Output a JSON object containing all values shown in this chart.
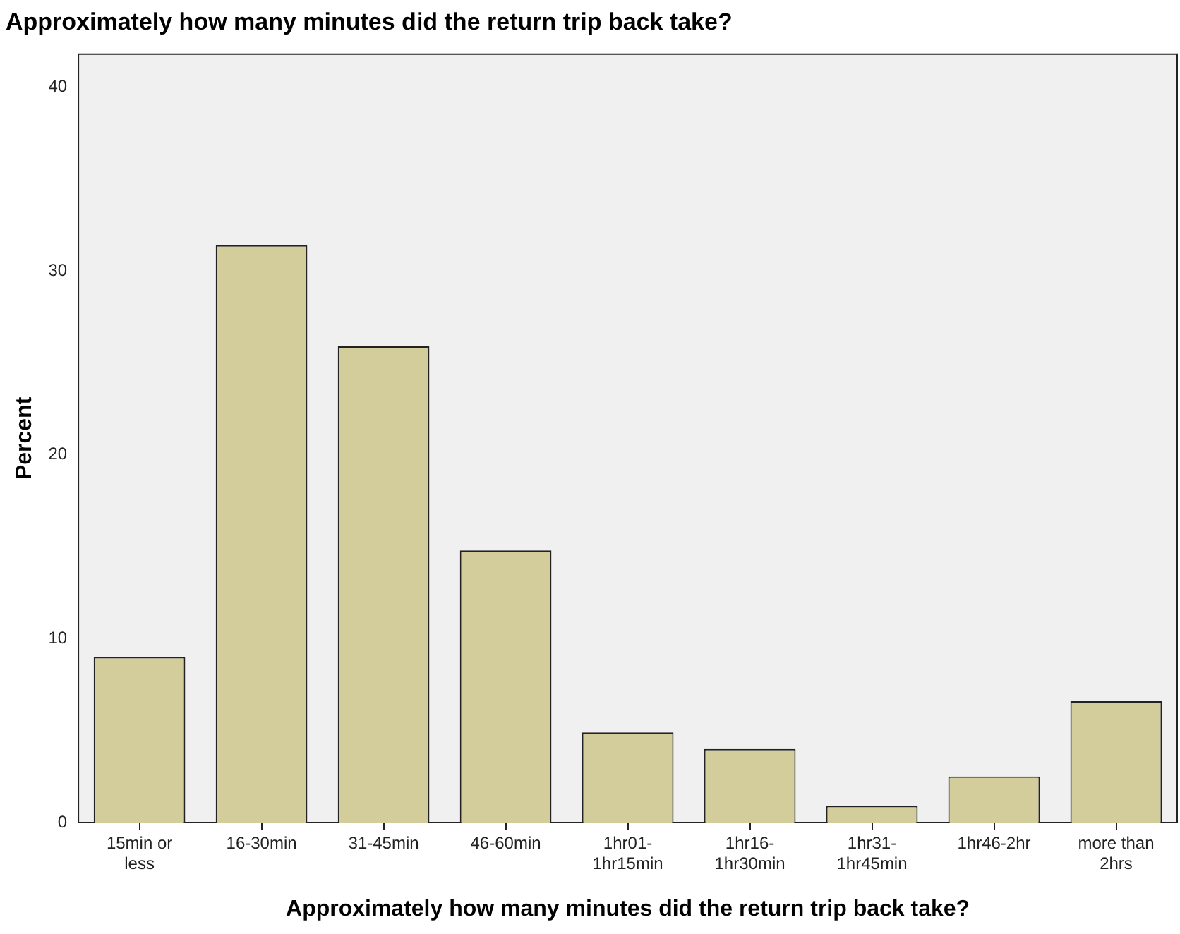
{
  "chart_data": {
    "type": "bar",
    "title": "Approximately how many minutes did the return trip back take?",
    "xlabel": "Approximately how many minutes did the return trip back take?",
    "ylabel": "Percent",
    "categories": [
      "15min or less",
      "16-30min",
      "31-45min",
      "46-60min",
      "1hr01-1hr15min",
      "1hr16-1hr30min",
      "1hr31-1hr45min",
      "1hr46-2hr",
      "more than 2hrs"
    ],
    "values": [
      9.0,
      31.4,
      25.9,
      14.8,
      4.9,
      4.0,
      0.9,
      2.5,
      6.6
    ],
    "color": "#d3cd9b",
    "ylim": [
      0,
      41.8
    ],
    "yticks": [
      0,
      10,
      20,
      30,
      40
    ],
    "grid": false,
    "legend": false
  }
}
